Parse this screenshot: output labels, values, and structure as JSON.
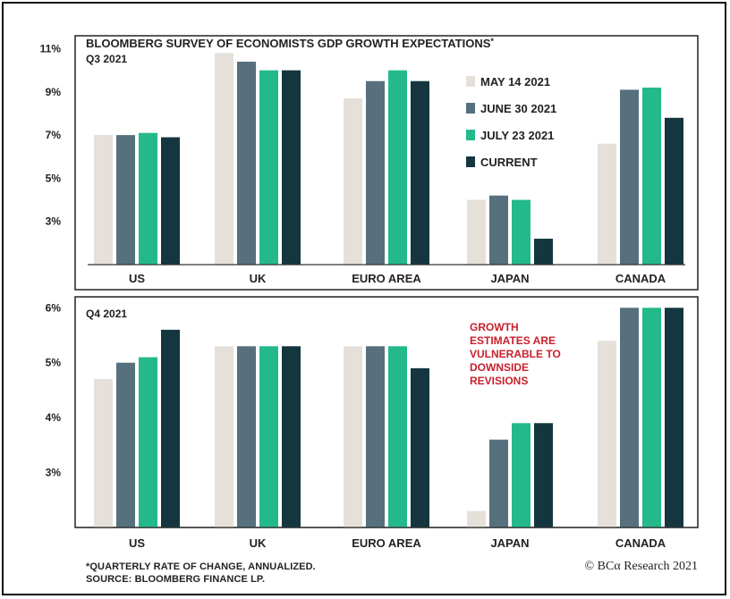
{
  "colors": {
    "series": [
      "#e6e0da",
      "#56707e",
      "#24b98a",
      "#14363f"
    ],
    "axis": "#333333",
    "panel_border": "#222222",
    "annotation": "#c8202b"
  },
  "chart_data": [
    {
      "type": "bar",
      "title": "BLOOMBERG SURVEY OF ECONOMISTS GDP GROWTH EXPECTATIONS",
      "title_mark": "*",
      "subtitle": "Q3 2021",
      "categories": [
        "US",
        "UK",
        "EURO AREA",
        "JAPAN",
        "CANADA"
      ],
      "series": [
        {
          "name": "MAY 14 2021",
          "values": [
            7.0,
            10.8,
            8.7,
            4.0,
            6.6
          ]
        },
        {
          "name": "JUNE 30 2021",
          "values": [
            7.0,
            10.4,
            9.5,
            4.2,
            9.1
          ]
        },
        {
          "name": "JULY 23 2021",
          "values": [
            7.1,
            10.0,
            10.0,
            4.0,
            9.2
          ]
        },
        {
          "name": "CURRENT",
          "values": [
            6.9,
            10.0,
            9.5,
            2.2,
            7.8
          ]
        }
      ],
      "yticks": [
        3,
        5,
        7,
        9,
        11
      ],
      "ytick_labels": [
        "3%",
        "5%",
        "7%",
        "9%",
        "11%"
      ],
      "ylim": [
        1.0,
        11.6
      ],
      "legend": "top-right",
      "grid": false,
      "xlabel": "",
      "ylabel": ""
    },
    {
      "type": "bar",
      "title": "",
      "subtitle": "Q4 2021",
      "categories": [
        "US",
        "UK",
        "EURO AREA",
        "JAPAN",
        "CANADA"
      ],
      "series": [
        {
          "name": "MAY 14 2021",
          "values": [
            4.7,
            5.3,
            5.3,
            2.3,
            5.4
          ]
        },
        {
          "name": "JUNE 30 2021",
          "values": [
            5.0,
            5.3,
            5.3,
            3.6,
            6.0
          ]
        },
        {
          "name": "JULY 23 2021",
          "values": [
            5.1,
            5.3,
            5.3,
            3.9,
            6.0
          ]
        },
        {
          "name": "CURRENT",
          "values": [
            5.6,
            5.3,
            4.9,
            3.9,
            6.0
          ]
        }
      ],
      "yticks": [
        3,
        4,
        5,
        6
      ],
      "ytick_labels": [
        "3%",
        "4%",
        "5%",
        "6%"
      ],
      "ylim": [
        2.0,
        6.2
      ],
      "annotation": [
        "GROWTH",
        "ESTIMATES ARE",
        "VULNERABLE TO",
        "DOWNSIDE",
        "REVISIONS"
      ],
      "grid": false,
      "xlabel": "",
      "ylabel": ""
    }
  ],
  "footnote": {
    "line1": "*QUARTERLY RATE OF CHANGE, ANNUALIZED.",
    "line2": "SOURCE: BLOOMBERG FINANCE LP."
  },
  "credit": "© BCα Research 2021"
}
